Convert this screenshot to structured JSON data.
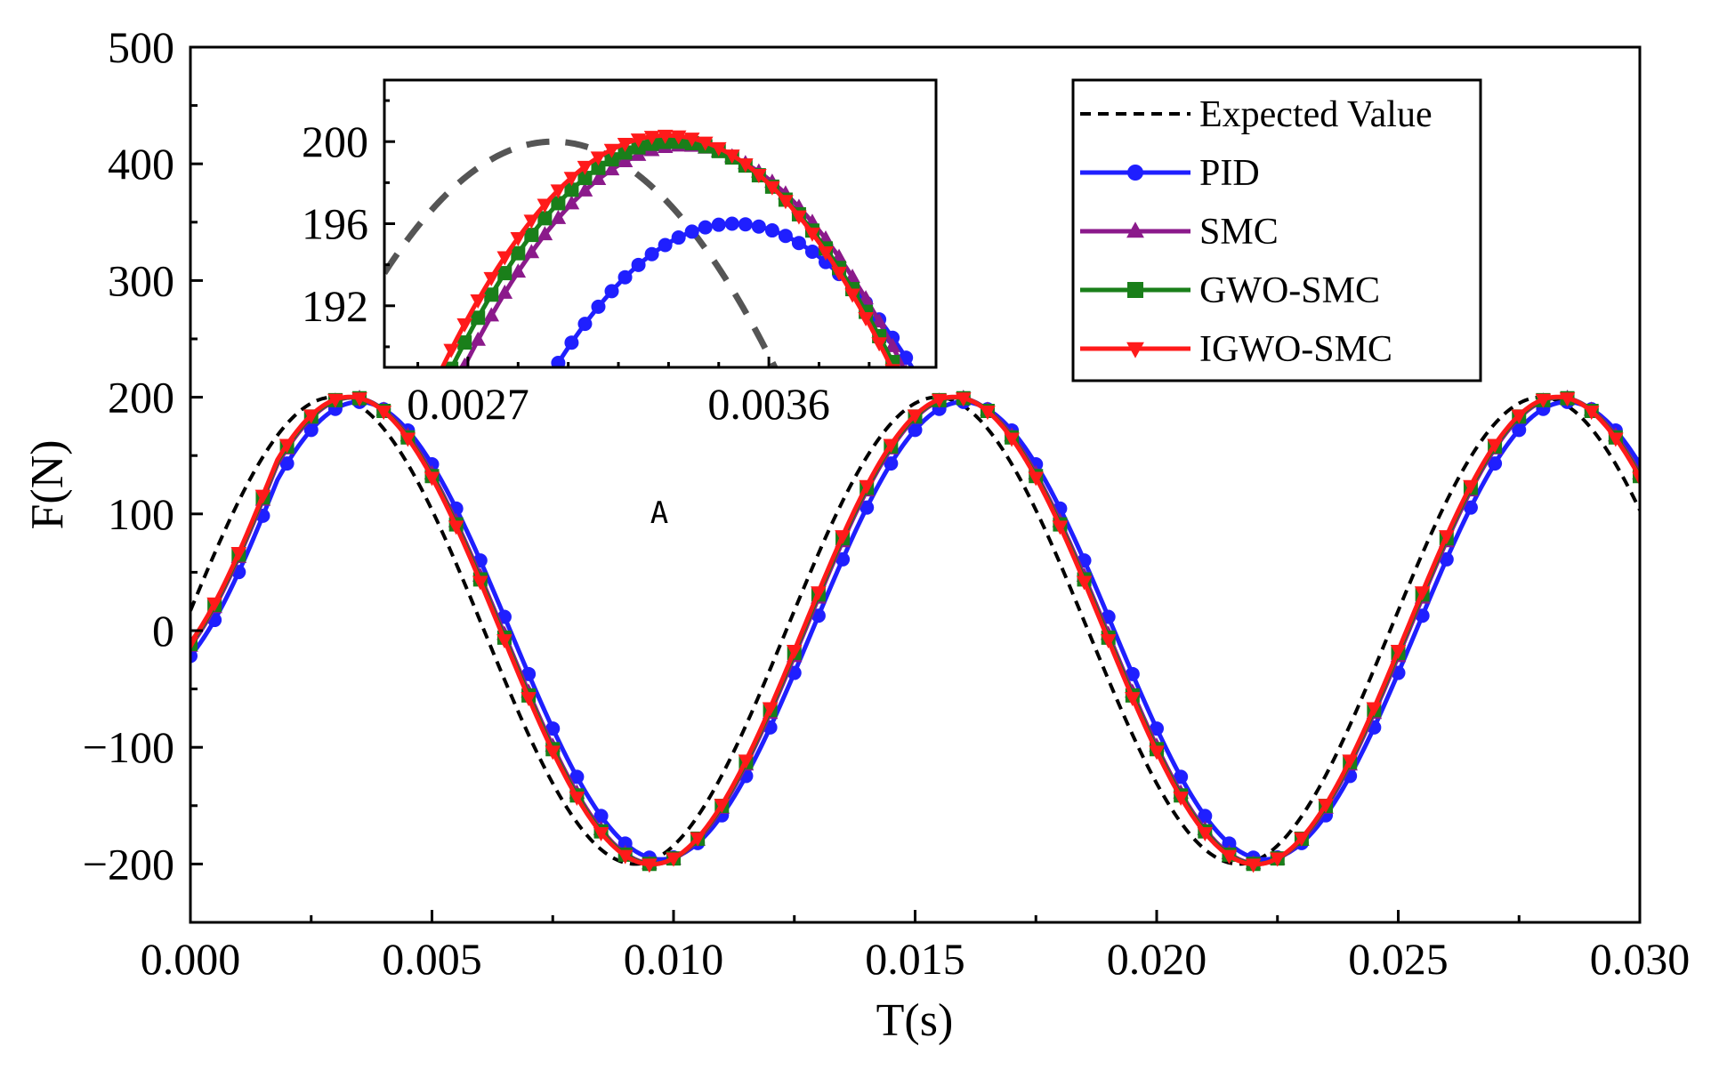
{
  "chart_data": {
    "type": "line",
    "xlabel": "T(s)",
    "ylabel": "F(N)",
    "xlim": [
      0,
      0.03
    ],
    "ylim": [
      -250,
      500
    ],
    "x_ticks": [
      "0.000",
      "0.005",
      "0.010",
      "0.015",
      "0.020",
      "0.025",
      "0.030"
    ],
    "y_ticks": [
      "−200",
      "−100",
      "0",
      "100",
      "200",
      "300",
      "400",
      "500"
    ],
    "grid": false,
    "legend_position": "top-right",
    "annotation": "A",
    "reference_signal": {
      "amplitude": 200,
      "frequency_hz": 80,
      "phase_lag_s": 0.00017
    },
    "series": [
      {
        "name": "Expected Value",
        "color": "#000000",
        "style": "dashed",
        "marker": "none",
        "x": [
          0,
          0.00313,
          0.00938,
          0.01563,
          0.02188,
          0.02813,
          0.03
        ],
        "y": [
          0,
          200,
          -200,
          200,
          -200,
          200,
          141
        ]
      },
      {
        "name": "PID",
        "color": "#1f1fff",
        "style": "solid",
        "marker": "circle",
        "x": [
          0,
          0.0035,
          0.00975,
          0.016,
          0.02225,
          0.0285,
          0.03
        ],
        "y": [
          0,
          192,
          -196,
          198,
          -198,
          198,
          125
        ]
      },
      {
        "name": "SMC",
        "color": "#8b1a8b",
        "style": "solid",
        "marker": "triangle-up",
        "x": [
          0,
          0.00335,
          0.0096,
          0.01585,
          0.0221,
          0.02835,
          0.03
        ],
        "y": [
          0,
          199.8,
          -199.8,
          200,
          -200,
          200,
          133
        ]
      },
      {
        "name": "GWO-SMC",
        "color": "#1a7f1a",
        "style": "solid",
        "marker": "square",
        "x": [
          0,
          0.00332,
          0.00957,
          0.01582,
          0.02207,
          0.02832,
          0.03
        ],
        "y": [
          0,
          200,
          -200,
          200,
          -200,
          200,
          135
        ]
      },
      {
        "name": "IGWO-SMC",
        "color": "#ff1a1a",
        "style": "solid",
        "marker": "triangle-down",
        "x": [
          0,
          0.0033,
          0.00955,
          0.0158,
          0.02205,
          0.0283,
          0.03
        ],
        "y": [
          0,
          200.2,
          -200.2,
          200.2,
          -200.2,
          200.2,
          136
        ]
      }
    ],
    "inset": {
      "xlim": [
        0.00245,
        0.0041
      ],
      "ylim": [
        189,
        203
      ],
      "x_ticks": [
        "0.0027",
        "0.0036"
      ],
      "y_ticks": [
        "192",
        "196",
        "200"
      ],
      "reference_color": "#555555"
    }
  }
}
